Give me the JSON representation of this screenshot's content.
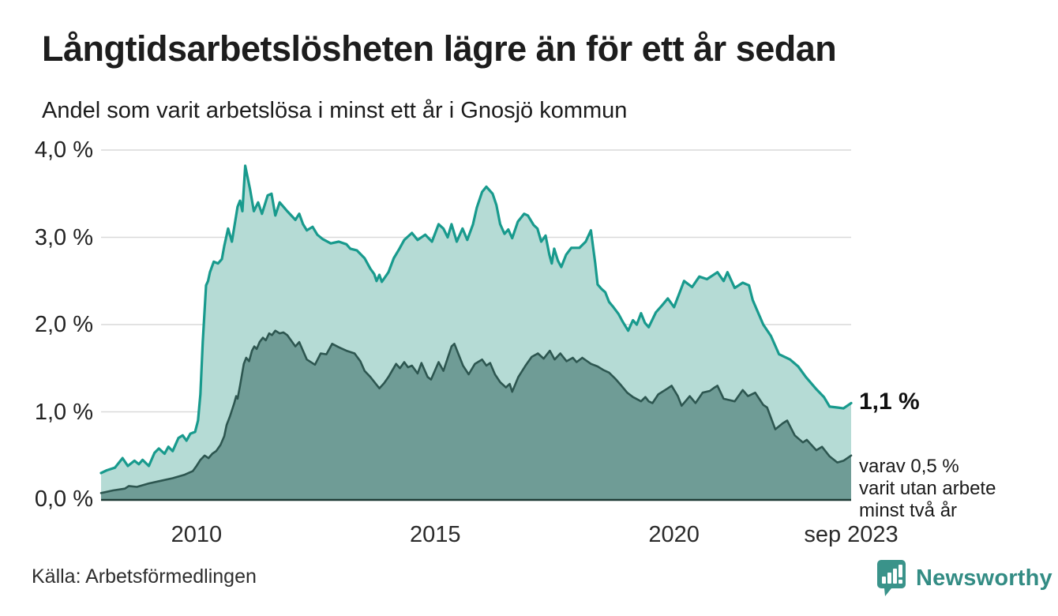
{
  "page": {
    "background": "#ffffff"
  },
  "header": {
    "title": "Långtidsarbetslösheten lägre än för ett år sedan",
    "subtitle": "Andel som varit arbetslösa i minst ett år i Gnosjö kommun"
  },
  "annotations": {
    "latest_total": "1,1 %",
    "breakdown_line1": "varav 0,5 %",
    "breakdown_line2": "varit utan arbete",
    "breakdown_line3": "minst två år"
  },
  "footer": {
    "source": "Källa: Arbetsförmedlingen",
    "brand": "Newsworthy",
    "brand_icon": "newsworthy-speech-bubble-bar-chart-icon"
  },
  "colors": {
    "line_1yr": "#189a8d",
    "fill_1yr": "#b5dbd5",
    "line_2yr": "#2d5650",
    "fill_2yr": "#6f9c96",
    "grid": "#d9d9d9",
    "axis": "#1e3b36",
    "brand_teal": "#338c84",
    "text": "#1a1a1a"
  },
  "chart_data": {
    "type": "area",
    "title": "Långtidsarbetslösheten lägre än för ett år sedan",
    "subtitle": "Andel som varit arbetslösa i minst ett år i Gnosjö kommun",
    "unit": "%",
    "x_range": [
      2008.0,
      2023.71
    ],
    "ylim": [
      0,
      4
    ],
    "grid": "horizontal",
    "legend_position": "none",
    "y_ticks": [
      {
        "value": 4,
        "label": "4,0 %"
      },
      {
        "value": 3,
        "label": "3,0 %"
      },
      {
        "value": 2,
        "label": "2,0 %"
      },
      {
        "value": 1,
        "label": "1,0 %"
      },
      {
        "value": 0,
        "label": "0,0 %"
      }
    ],
    "x_ticks": [
      {
        "year": 2010,
        "label": "2010"
      },
      {
        "year": 2015,
        "label": "2015"
      },
      {
        "year": 2020,
        "label": "2020"
      },
      {
        "year": 2023.71,
        "label": "sep 2023"
      }
    ],
    "series": [
      {
        "name": "Andel som varit arbetslösa minst ett år",
        "latest_value": "1,1 %",
        "stroke": "#189a8d",
        "fill": "#b5dbd5",
        "points": [
          [
            2008.0,
            0.3
          ],
          [
            2008.12,
            0.33
          ],
          [
            2008.29,
            0.36
          ],
          [
            2008.45,
            0.47
          ],
          [
            2008.56,
            0.38
          ],
          [
            2008.7,
            0.44
          ],
          [
            2008.79,
            0.4
          ],
          [
            2008.87,
            0.45
          ],
          [
            2009.0,
            0.38
          ],
          [
            2009.12,
            0.53
          ],
          [
            2009.21,
            0.58
          ],
          [
            2009.33,
            0.52
          ],
          [
            2009.41,
            0.6
          ],
          [
            2009.5,
            0.55
          ],
          [
            2009.62,
            0.7
          ],
          [
            2009.71,
            0.73
          ],
          [
            2009.79,
            0.67
          ],
          [
            2009.87,
            0.75
          ],
          [
            2009.97,
            0.77
          ],
          [
            2010.03,
            0.9
          ],
          [
            2010.08,
            1.2
          ],
          [
            2010.13,
            1.8
          ],
          [
            2010.2,
            2.45
          ],
          [
            2010.24,
            2.5
          ],
          [
            2010.28,
            2.6
          ],
          [
            2010.36,
            2.72
          ],
          [
            2010.45,
            2.7
          ],
          [
            2010.53,
            2.75
          ],
          [
            2010.58,
            2.9
          ],
          [
            2010.66,
            3.1
          ],
          [
            2010.74,
            2.95
          ],
          [
            2010.86,
            3.35
          ],
          [
            2010.91,
            3.42
          ],
          [
            2010.96,
            3.3
          ],
          [
            2011.02,
            3.82
          ],
          [
            2011.12,
            3.55
          ],
          [
            2011.2,
            3.3
          ],
          [
            2011.29,
            3.4
          ],
          [
            2011.37,
            3.27
          ],
          [
            2011.49,
            3.48
          ],
          [
            2011.57,
            3.5
          ],
          [
            2011.65,
            3.25
          ],
          [
            2011.74,
            3.4
          ],
          [
            2011.82,
            3.35
          ],
          [
            2011.9,
            3.3
          ],
          [
            2012.07,
            3.2
          ],
          [
            2012.15,
            3.27
          ],
          [
            2012.23,
            3.15
          ],
          [
            2012.31,
            3.08
          ],
          [
            2012.43,
            3.12
          ],
          [
            2012.53,
            3.03
          ],
          [
            2012.64,
            2.98
          ],
          [
            2012.81,
            2.93
          ],
          [
            2012.98,
            2.95
          ],
          [
            2013.14,
            2.92
          ],
          [
            2013.22,
            2.87
          ],
          [
            2013.36,
            2.85
          ],
          [
            2013.52,
            2.76
          ],
          [
            2013.64,
            2.64
          ],
          [
            2013.72,
            2.58
          ],
          [
            2013.77,
            2.5
          ],
          [
            2013.83,
            2.57
          ],
          [
            2013.88,
            2.49
          ],
          [
            2014.02,
            2.6
          ],
          [
            2014.13,
            2.76
          ],
          [
            2014.25,
            2.87
          ],
          [
            2014.35,
            2.97
          ],
          [
            2014.51,
            3.05
          ],
          [
            2014.63,
            2.97
          ],
          [
            2014.79,
            3.03
          ],
          [
            2014.93,
            2.95
          ],
          [
            2015.07,
            3.15
          ],
          [
            2015.17,
            3.1
          ],
          [
            2015.26,
            3.0
          ],
          [
            2015.34,
            3.15
          ],
          [
            2015.45,
            2.95
          ],
          [
            2015.57,
            3.1
          ],
          [
            2015.67,
            2.97
          ],
          [
            2015.79,
            3.15
          ],
          [
            2015.87,
            3.34
          ],
          [
            2015.98,
            3.52
          ],
          [
            2016.07,
            3.58
          ],
          [
            2016.2,
            3.5
          ],
          [
            2016.28,
            3.37
          ],
          [
            2016.36,
            3.15
          ],
          [
            2016.45,
            3.04
          ],
          [
            2016.53,
            3.09
          ],
          [
            2016.61,
            2.99
          ],
          [
            2016.73,
            3.18
          ],
          [
            2016.86,
            3.27
          ],
          [
            2016.94,
            3.25
          ],
          [
            2017.06,
            3.14
          ],
          [
            2017.14,
            3.1
          ],
          [
            2017.22,
            2.95
          ],
          [
            2017.31,
            3.02
          ],
          [
            2017.39,
            2.8
          ],
          [
            2017.44,
            2.7
          ],
          [
            2017.49,
            2.87
          ],
          [
            2017.57,
            2.73
          ],
          [
            2017.64,
            2.66
          ],
          [
            2017.74,
            2.8
          ],
          [
            2017.85,
            2.88
          ],
          [
            2018.02,
            2.88
          ],
          [
            2018.15,
            2.95
          ],
          [
            2018.26,
            3.08
          ],
          [
            2018.35,
            2.7
          ],
          [
            2018.4,
            2.46
          ],
          [
            2018.48,
            2.41
          ],
          [
            2018.56,
            2.37
          ],
          [
            2018.64,
            2.26
          ],
          [
            2018.73,
            2.2
          ],
          [
            2018.84,
            2.12
          ],
          [
            2018.93,
            2.03
          ],
          [
            2019.04,
            1.93
          ],
          [
            2019.14,
            2.05
          ],
          [
            2019.22,
            2.0
          ],
          [
            2019.31,
            2.13
          ],
          [
            2019.39,
            2.02
          ],
          [
            2019.47,
            1.97
          ],
          [
            2019.62,
            2.14
          ],
          [
            2019.75,
            2.22
          ],
          [
            2019.87,
            2.3
          ],
          [
            2020.0,
            2.2
          ],
          [
            2020.21,
            2.5
          ],
          [
            2020.38,
            2.43
          ],
          [
            2020.53,
            2.55
          ],
          [
            2020.69,
            2.52
          ],
          [
            2020.91,
            2.6
          ],
          [
            2021.04,
            2.5
          ],
          [
            2021.12,
            2.6
          ],
          [
            2021.27,
            2.42
          ],
          [
            2021.44,
            2.48
          ],
          [
            2021.57,
            2.45
          ],
          [
            2021.65,
            2.28
          ],
          [
            2021.87,
            2.0
          ],
          [
            2022.03,
            1.87
          ],
          [
            2022.2,
            1.66
          ],
          [
            2022.43,
            1.6
          ],
          [
            2022.6,
            1.52
          ],
          [
            2022.76,
            1.4
          ],
          [
            2022.98,
            1.26
          ],
          [
            2023.14,
            1.17
          ],
          [
            2023.26,
            1.06
          ],
          [
            2023.42,
            1.05
          ],
          [
            2023.55,
            1.04
          ],
          [
            2023.71,
            1.1
          ]
        ]
      },
      {
        "name": "varav arbetslösa minst två år",
        "latest_value": "0,5 %",
        "stroke": "#2d5650",
        "fill": "#6f9c96",
        "points": [
          [
            2008.0,
            0.07
          ],
          [
            2008.25,
            0.1
          ],
          [
            2008.5,
            0.12
          ],
          [
            2008.58,
            0.15
          ],
          [
            2008.75,
            0.14
          ],
          [
            2009.0,
            0.18
          ],
          [
            2009.25,
            0.21
          ],
          [
            2009.5,
            0.24
          ],
          [
            2009.75,
            0.28
          ],
          [
            2009.92,
            0.32
          ],
          [
            2010.0,
            0.38
          ],
          [
            2010.08,
            0.45
          ],
          [
            2010.17,
            0.5
          ],
          [
            2010.25,
            0.47
          ],
          [
            2010.33,
            0.52
          ],
          [
            2010.41,
            0.55
          ],
          [
            2010.5,
            0.62
          ],
          [
            2010.58,
            0.72
          ],
          [
            2010.63,
            0.85
          ],
          [
            2010.7,
            0.95
          ],
          [
            2010.79,
            1.1
          ],
          [
            2010.83,
            1.18
          ],
          [
            2010.86,
            1.15
          ],
          [
            2010.91,
            1.3
          ],
          [
            2010.99,
            1.55
          ],
          [
            2011.04,
            1.62
          ],
          [
            2011.1,
            1.58
          ],
          [
            2011.16,
            1.7
          ],
          [
            2011.21,
            1.75
          ],
          [
            2011.26,
            1.72
          ],
          [
            2011.32,
            1.8
          ],
          [
            2011.39,
            1.85
          ],
          [
            2011.45,
            1.82
          ],
          [
            2011.52,
            1.9
          ],
          [
            2011.58,
            1.88
          ],
          [
            2011.65,
            1.93
          ],
          [
            2011.74,
            1.9
          ],
          [
            2011.82,
            1.91
          ],
          [
            2011.9,
            1.88
          ],
          [
            2012.07,
            1.75
          ],
          [
            2012.15,
            1.8
          ],
          [
            2012.31,
            1.6
          ],
          [
            2012.48,
            1.54
          ],
          [
            2012.6,
            1.67
          ],
          [
            2012.72,
            1.66
          ],
          [
            2012.84,
            1.78
          ],
          [
            2012.98,
            1.74
          ],
          [
            2013.14,
            1.7
          ],
          [
            2013.31,
            1.67
          ],
          [
            2013.43,
            1.58
          ],
          [
            2013.52,
            1.47
          ],
          [
            2013.64,
            1.4
          ],
          [
            2013.77,
            1.31
          ],
          [
            2013.83,
            1.27
          ],
          [
            2013.93,
            1.33
          ],
          [
            2014.02,
            1.4
          ],
          [
            2014.18,
            1.55
          ],
          [
            2014.26,
            1.5
          ],
          [
            2014.35,
            1.57
          ],
          [
            2014.43,
            1.51
          ],
          [
            2014.51,
            1.53
          ],
          [
            2014.63,
            1.44
          ],
          [
            2014.71,
            1.56
          ],
          [
            2014.84,
            1.4
          ],
          [
            2014.91,
            1.37
          ],
          [
            2015.07,
            1.57
          ],
          [
            2015.17,
            1.47
          ],
          [
            2015.34,
            1.75
          ],
          [
            2015.4,
            1.78
          ],
          [
            2015.48,
            1.67
          ],
          [
            2015.58,
            1.53
          ],
          [
            2015.7,
            1.43
          ],
          [
            2015.83,
            1.55
          ],
          [
            2015.98,
            1.6
          ],
          [
            2016.07,
            1.53
          ],
          [
            2016.15,
            1.56
          ],
          [
            2016.25,
            1.43
          ],
          [
            2016.36,
            1.34
          ],
          [
            2016.48,
            1.28
          ],
          [
            2016.56,
            1.32
          ],
          [
            2016.61,
            1.23
          ],
          [
            2016.74,
            1.4
          ],
          [
            2016.89,
            1.53
          ],
          [
            2017.02,
            1.63
          ],
          [
            2017.15,
            1.67
          ],
          [
            2017.27,
            1.61
          ],
          [
            2017.4,
            1.7
          ],
          [
            2017.5,
            1.6
          ],
          [
            2017.62,
            1.67
          ],
          [
            2017.75,
            1.58
          ],
          [
            2017.88,
            1.62
          ],
          [
            2017.96,
            1.57
          ],
          [
            2018.08,
            1.62
          ],
          [
            2018.26,
            1.55
          ],
          [
            2018.4,
            1.52
          ],
          [
            2018.52,
            1.48
          ],
          [
            2018.64,
            1.45
          ],
          [
            2018.77,
            1.38
          ],
          [
            2018.9,
            1.3
          ],
          [
            2019.02,
            1.22
          ],
          [
            2019.14,
            1.17
          ],
          [
            2019.31,
            1.12
          ],
          [
            2019.4,
            1.17
          ],
          [
            2019.47,
            1.12
          ],
          [
            2019.55,
            1.1
          ],
          [
            2019.67,
            1.2
          ],
          [
            2019.87,
            1.27
          ],
          [
            2019.95,
            1.3
          ],
          [
            2020.08,
            1.18
          ],
          [
            2020.16,
            1.07
          ],
          [
            2020.33,
            1.18
          ],
          [
            2020.45,
            1.1
          ],
          [
            2020.6,
            1.22
          ],
          [
            2020.75,
            1.24
          ],
          [
            2020.85,
            1.28
          ],
          [
            2020.91,
            1.3
          ],
          [
            2021.04,
            1.15
          ],
          [
            2021.27,
            1.12
          ],
          [
            2021.44,
            1.25
          ],
          [
            2021.55,
            1.18
          ],
          [
            2021.7,
            1.22
          ],
          [
            2021.87,
            1.08
          ],
          [
            2021.95,
            1.05
          ],
          [
            2022.12,
            0.8
          ],
          [
            2022.28,
            0.87
          ],
          [
            2022.37,
            0.9
          ],
          [
            2022.53,
            0.73
          ],
          [
            2022.7,
            0.65
          ],
          [
            2022.78,
            0.68
          ],
          [
            2022.98,
            0.56
          ],
          [
            2023.1,
            0.6
          ],
          [
            2023.26,
            0.49
          ],
          [
            2023.42,
            0.42
          ],
          [
            2023.55,
            0.44
          ],
          [
            2023.71,
            0.5
          ]
        ]
      }
    ]
  }
}
